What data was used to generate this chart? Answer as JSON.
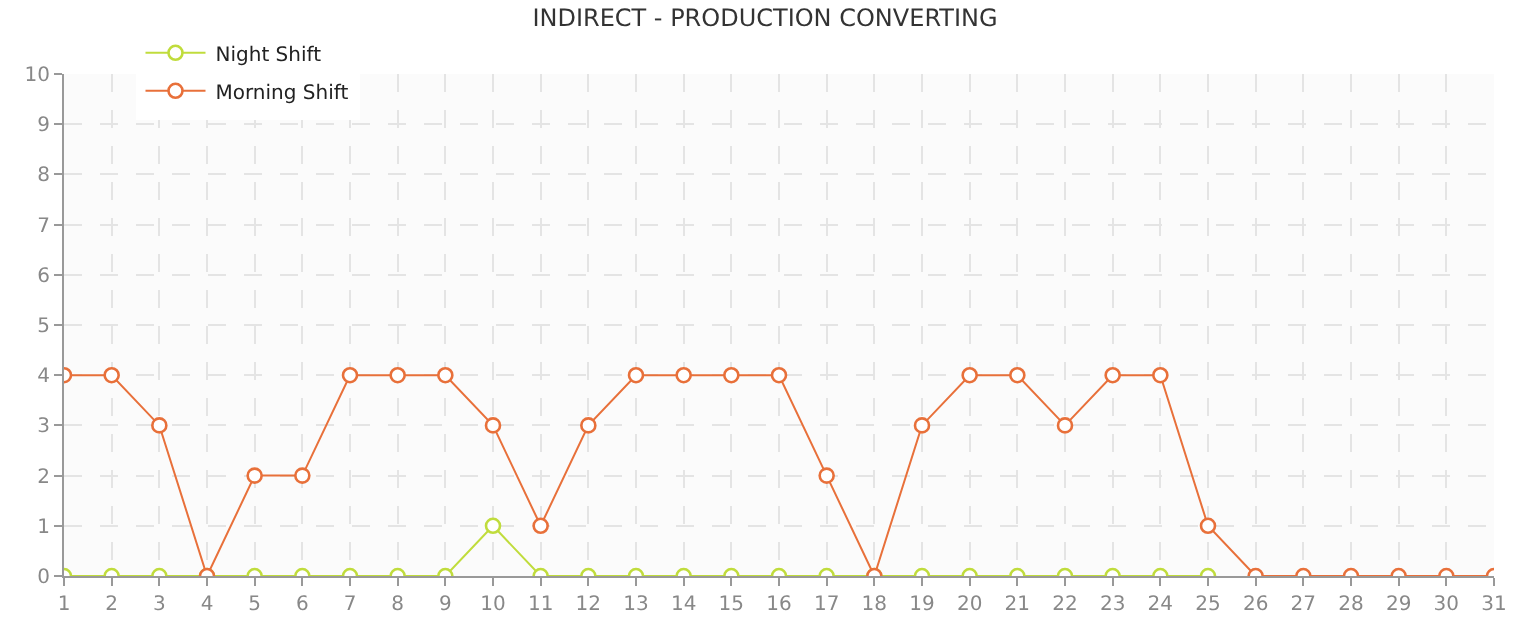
{
  "chart_data": {
    "type": "line",
    "title": "INDIRECT - PRODUCTION CONVERTING",
    "x": [
      1,
      2,
      3,
      4,
      5,
      6,
      7,
      8,
      9,
      10,
      11,
      12,
      13,
      14,
      15,
      16,
      17,
      18,
      19,
      20,
      21,
      22,
      23,
      24,
      25,
      26,
      27,
      28,
      29,
      30,
      31
    ],
    "series": [
      {
        "name": "Night Shift",
        "color": "#c0dc3c",
        "values": [
          0,
          0,
          0,
          0,
          0,
          0,
          0,
          0,
          0,
          1,
          0,
          0,
          0,
          0,
          0,
          0,
          0,
          0,
          0,
          0,
          0,
          0,
          0,
          0,
          0,
          null,
          null,
          null,
          null,
          null,
          null
        ]
      },
      {
        "name": "Morning Shift",
        "color": "#e8703a",
        "values": [
          4,
          4,
          3,
          0,
          2,
          2,
          4,
          4,
          4,
          3,
          1,
          3,
          4,
          4,
          4,
          4,
          2,
          0,
          3,
          4,
          4,
          3,
          4,
          4,
          1,
          0,
          0,
          0,
          0,
          0,
          0
        ]
      }
    ],
    "xlim": [
      1,
      31
    ],
    "xticks": [
      1,
      2,
      3,
      4,
      5,
      6,
      7,
      8,
      9,
      10,
      11,
      12,
      13,
      14,
      15,
      16,
      17,
      18,
      19,
      20,
      21,
      22,
      23,
      24,
      25,
      26,
      27,
      28,
      29,
      30,
      31
    ],
    "ylim": [
      0,
      10
    ],
    "yticks": [
      0,
      1,
      2,
      3,
      4,
      5,
      6,
      7,
      8,
      9,
      10
    ],
    "grid": true,
    "legend": "top left",
    "marker": "circle",
    "line_style": "solid"
  }
}
